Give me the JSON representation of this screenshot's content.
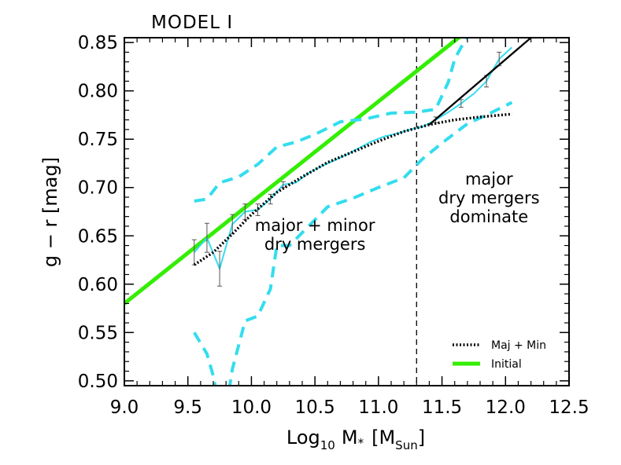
{
  "chart_data": {
    "type": "line",
    "title": "MODEL I",
    "xlabel": "Log10 M* [MSun]",
    "xlabel_parts": {
      "base": "Log",
      "base_sub": "10",
      "var": "M",
      "var_sub": "*",
      "unit": "M",
      "unit_sub": "Sun"
    },
    "ylabel": "g − r [mag]",
    "xlim": [
      9.0,
      12.5
    ],
    "ylim": [
      0.495,
      0.855
    ],
    "xticks": [
      "9.0",
      "9.5",
      "10.0",
      "10.5",
      "11.0",
      "11.5",
      "12.0",
      "12.5"
    ],
    "yticks": [
      "0.50",
      "0.55",
      "0.60",
      "0.65",
      "0.70",
      "0.75",
      "0.80",
      "0.85"
    ],
    "grid": false,
    "legend_position": "bottom-right",
    "vline_x": 11.3,
    "annotations": [
      {
        "lines": [
          "major + minor",
          "dry mergers"
        ],
        "x": 10.5,
        "y": 0.655
      },
      {
        "lines": [
          "major",
          "dry mergers",
          "dominate"
        ],
        "x": 11.87,
        "y": 0.703
      }
    ],
    "legend": [
      {
        "label": "Maj + Min",
        "style": "dotted",
        "color": "#000000"
      },
      {
        "label": "Initial",
        "style": "solid",
        "color": "#33ee00"
      }
    ],
    "colors": {
      "initial": "#33ee00",
      "cyan": "#33ddee",
      "black": "#000000",
      "errorbar": "#555555"
    },
    "series": [
      {
        "name": "Initial",
        "style": "solid",
        "role": "initial",
        "x": [
          9.0,
          11.65
        ],
        "y": [
          0.58,
          0.857
        ]
      },
      {
        "name": "Maj + Min",
        "style": "dotted",
        "role": "majmin",
        "x": [
          9.55,
          9.7,
          9.85,
          10.0,
          10.2,
          10.4,
          10.6,
          10.8,
          11.0,
          11.2,
          11.4,
          11.6,
          11.8,
          12.05
        ],
        "y": [
          0.62,
          0.633,
          0.652,
          0.672,
          0.695,
          0.711,
          0.726,
          0.737,
          0.748,
          0.758,
          0.765,
          0.77,
          0.773,
          0.776
        ]
      },
      {
        "role": "upper-dashed",
        "style": "dashed",
        "x": [
          9.55,
          9.65,
          9.75,
          9.9,
          10.05,
          10.2,
          10.35,
          10.5,
          10.7,
          10.9,
          11.1,
          11.3,
          11.45,
          11.55,
          11.6,
          11.7
        ],
        "y": [
          0.686,
          0.688,
          0.705,
          0.711,
          0.724,
          0.742,
          0.747,
          0.755,
          0.768,
          0.771,
          0.777,
          0.778,
          0.781,
          0.809,
          0.833,
          0.857
        ]
      },
      {
        "role": "lower-dashed",
        "style": "dashed",
        "x": [
          9.55,
          9.65,
          9.7,
          9.75,
          9.8,
          9.85,
          9.95,
          10.05,
          10.15,
          10.2,
          10.3,
          10.45,
          10.6,
          10.8,
          11.0,
          11.2,
          11.35,
          11.5,
          11.7,
          11.85,
          12.05
        ],
        "y": [
          0.55,
          0.528,
          0.505,
          0.47,
          0.47,
          0.512,
          0.562,
          0.567,
          0.595,
          0.64,
          0.64,
          0.66,
          0.68,
          0.689,
          0.7,
          0.71,
          0.73,
          0.746,
          0.766,
          0.775,
          0.788
        ]
      },
      {
        "role": "cyan-solid",
        "style": "solid",
        "x": [
          9.55,
          9.65,
          9.75,
          9.85,
          9.95,
          10.05,
          10.15,
          10.25,
          10.35,
          10.45,
          10.55,
          10.65,
          10.75,
          10.85,
          10.95,
          11.05,
          11.15,
          11.25,
          11.35,
          11.45,
          11.55,
          11.65,
          11.75,
          11.85,
          11.95,
          12.05
        ],
        "y": [
          0.633,
          0.648,
          0.616,
          0.662,
          0.675,
          0.677,
          0.688,
          0.703,
          0.705,
          0.715,
          0.722,
          0.728,
          0.734,
          0.741,
          0.748,
          0.753,
          0.756,
          0.76,
          0.763,
          0.77,
          0.778,
          0.787,
          0.797,
          0.81,
          0.833,
          0.845
        ]
      },
      {
        "role": "errorbars",
        "x": [
          9.55,
          9.65,
          9.75,
          9.85,
          9.95,
          10.05,
          10.15,
          10.25,
          11.45,
          11.65,
          11.85,
          11.95
        ],
        "y": [
          0.633,
          0.648,
          0.616,
          0.662,
          0.675,
          0.677,
          0.688,
          0.703,
          0.77,
          0.787,
          0.81,
          0.833
        ],
        "err": [
          0.013,
          0.015,
          0.018,
          0.01,
          0.008,
          0.006,
          0.005,
          0.003,
          0.003,
          0.004,
          0.006,
          0.007
        ]
      },
      {
        "role": "black-fit",
        "style": "solid",
        "x": [
          11.4,
          12.2
        ],
        "y": [
          0.765,
          0.855
        ]
      }
    ]
  }
}
